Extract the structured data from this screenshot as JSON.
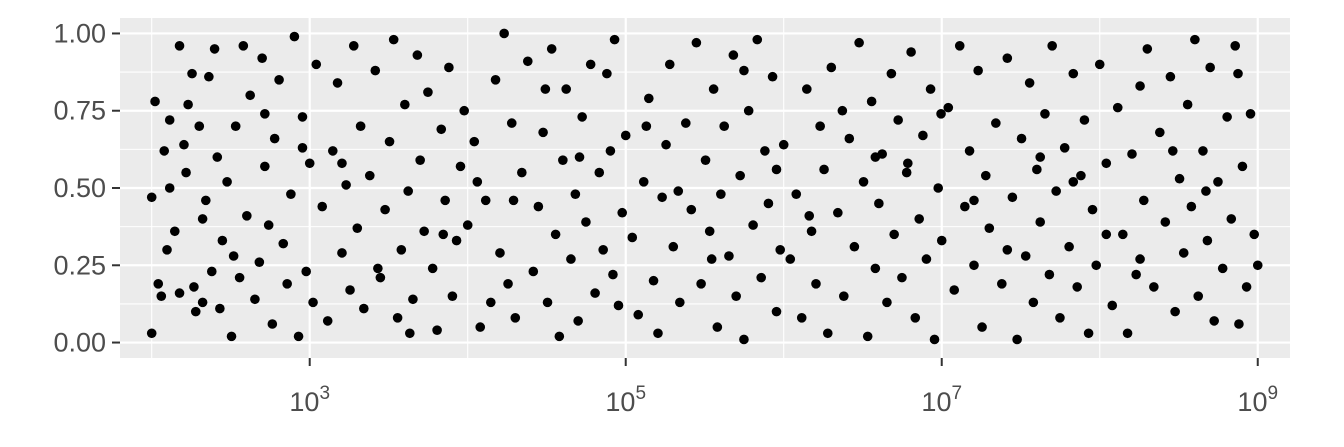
{
  "chart_data": {
    "type": "scatter",
    "title": "",
    "xlabel": "",
    "ylabel": "",
    "x_scale": "log10",
    "xlim": [
      63,
      1600000000
    ],
    "ylim": [
      -0.05,
      1.05
    ],
    "grid": true,
    "legend": "none",
    "colors": {
      "panel": "#ebebeb",
      "grid": "#ffffff",
      "point": "#000000",
      "text": "#4d4d4d",
      "tick": "#333333"
    },
    "x_ticks": [
      {
        "value": 1000,
        "base": "10",
        "exp": "3"
      },
      {
        "value": 100000,
        "base": "10",
        "exp": "5"
      },
      {
        "value": 10000000,
        "base": "10",
        "exp": "7"
      },
      {
        "value": 1000000000,
        "base": "10",
        "exp": "9"
      }
    ],
    "y_ticks": [
      {
        "value": 0.0,
        "label": "0.00"
      },
      {
        "value": 0.25,
        "label": "0.25"
      },
      {
        "value": 0.5,
        "label": "0.50"
      },
      {
        "value": 0.75,
        "label": "0.75"
      },
      {
        "value": 1.0,
        "label": "1.00"
      }
    ],
    "points": [
      [
        100,
        0.47
      ],
      [
        100,
        0.03
      ],
      [
        105,
        0.78
      ],
      [
        110,
        0.19
      ],
      [
        115,
        0.15
      ],
      [
        120,
        0.62
      ],
      [
        125,
        0.3
      ],
      [
        130,
        0.72
      ],
      [
        140,
        0.36
      ],
      [
        150,
        0.96
      ],
      [
        150,
        0.16
      ],
      [
        160,
        0.64
      ],
      [
        165,
        0.55
      ],
      [
        170,
        0.77
      ],
      [
        180,
        0.87
      ],
      [
        185,
        0.18
      ],
      [
        190,
        0.1
      ],
      [
        200,
        0.7
      ],
      [
        210,
        0.13
      ],
      [
        220,
        0.46
      ],
      [
        230,
        0.86
      ],
      [
        240,
        0.23
      ],
      [
        250,
        0.95
      ],
      [
        260,
        0.6
      ],
      [
        270,
        0.11
      ],
      [
        280,
        0.33
      ],
      [
        300,
        0.52
      ],
      [
        320,
        0.02
      ],
      [
        340,
        0.7
      ],
      [
        360,
        0.21
      ],
      [
        380,
        0.96
      ],
      [
        400,
        0.41
      ],
      [
        420,
        0.8
      ],
      [
        450,
        0.14
      ],
      [
        480,
        0.26
      ],
      [
        500,
        0.92
      ],
      [
        520,
        0.57
      ],
      [
        550,
        0.38
      ],
      [
        580,
        0.06
      ],
      [
        600,
        0.66
      ],
      [
        640,
        0.85
      ],
      [
        680,
        0.32
      ],
      [
        720,
        0.19
      ],
      [
        760,
        0.48
      ],
      [
        800,
        0.99
      ],
      [
        850,
        0.02
      ],
      [
        900,
        0.73
      ],
      [
        950,
        0.23
      ],
      [
        1000,
        0.58
      ],
      [
        1050,
        0.13
      ],
      [
        1100,
        0.9
      ],
      [
        1200,
        0.44
      ],
      [
        1300,
        0.07
      ],
      [
        1400,
        0.62
      ],
      [
        1500,
        0.84
      ],
      [
        1600,
        0.29
      ],
      [
        1700,
        0.51
      ],
      [
        1800,
        0.17
      ],
      [
        1900,
        0.96
      ],
      [
        2000,
        0.37
      ],
      [
        2100,
        0.7
      ],
      [
        2200,
        0.11
      ],
      [
        2400,
        0.54
      ],
      [
        2600,
        0.88
      ],
      [
        2800,
        0.21
      ],
      [
        3000,
        0.43
      ],
      [
        3200,
        0.65
      ],
      [
        3400,
        0.98
      ],
      [
        3600,
        0.08
      ],
      [
        3800,
        0.3
      ],
      [
        4000,
        0.77
      ],
      [
        4200,
        0.49
      ],
      [
        4500,
        0.14
      ],
      [
        4800,
        0.93
      ],
      [
        5000,
        0.59
      ],
      [
        5300,
        0.36
      ],
      [
        5600,
        0.81
      ],
      [
        6000,
        0.24
      ],
      [
        6400,
        0.04
      ],
      [
        6800,
        0.69
      ],
      [
        7200,
        0.46
      ],
      [
        7600,
        0.89
      ],
      [
        8000,
        0.15
      ],
      [
        8500,
        0.33
      ],
      [
        9000,
        0.57
      ],
      [
        9500,
        0.75
      ],
      [
        10000,
        0.38
      ],
      [
        11000,
        0.65
      ],
      [
        12000,
        0.05
      ],
      [
        13000,
        0.46
      ],
      [
        14000,
        0.13
      ],
      [
        15000,
        0.85
      ],
      [
        16000,
        0.29
      ],
      [
        17000,
        1.0
      ],
      [
        18000,
        0.19
      ],
      [
        19000,
        0.71
      ],
      [
        20000,
        0.08
      ],
      [
        22000,
        0.55
      ],
      [
        24000,
        0.91
      ],
      [
        26000,
        0.23
      ],
      [
        28000,
        0.44
      ],
      [
        30000,
        0.68
      ],
      [
        32000,
        0.13
      ],
      [
        34000,
        0.95
      ],
      [
        36000,
        0.35
      ],
      [
        38000,
        0.02
      ],
      [
        40000,
        0.59
      ],
      [
        42000,
        0.82
      ],
      [
        45000,
        0.27
      ],
      [
        48000,
        0.48
      ],
      [
        50000,
        0.07
      ],
      [
        53000,
        0.73
      ],
      [
        56000,
        0.39
      ],
      [
        60000,
        0.9
      ],
      [
        64000,
        0.16
      ],
      [
        68000,
        0.55
      ],
      [
        72000,
        0.3
      ],
      [
        76000,
        0.87
      ],
      [
        80000,
        0.62
      ],
      [
        85000,
        0.98
      ],
      [
        90000,
        0.12
      ],
      [
        95000,
        0.42
      ],
      [
        100000,
        0.67
      ],
      [
        110000,
        0.34
      ],
      [
        120000,
        0.09
      ],
      [
        130000,
        0.52
      ],
      [
        140000,
        0.79
      ],
      [
        150000,
        0.2
      ],
      [
        160000,
        0.03
      ],
      [
        170000,
        0.47
      ],
      [
        180000,
        0.64
      ],
      [
        190000,
        0.9
      ],
      [
        200000,
        0.31
      ],
      [
        220000,
        0.13
      ],
      [
        240000,
        0.71
      ],
      [
        260000,
        0.43
      ],
      [
        280000,
        0.97
      ],
      [
        300000,
        0.19
      ],
      [
        320000,
        0.59
      ],
      [
        340000,
        0.36
      ],
      [
        360000,
        0.82
      ],
      [
        380000,
        0.05
      ],
      [
        400000,
        0.48
      ],
      [
        420000,
        0.7
      ],
      [
        450000,
        0.28
      ],
      [
        480000,
        0.93
      ],
      [
        500000,
        0.15
      ],
      [
        530000,
        0.54
      ],
      [
        560000,
        0.01
      ],
      [
        600000,
        0.75
      ],
      [
        640000,
        0.38
      ],
      [
        680000,
        0.98
      ],
      [
        720000,
        0.21
      ],
      [
        760000,
        0.62
      ],
      [
        800000,
        0.45
      ],
      [
        850000,
        0.86
      ],
      [
        900000,
        0.1
      ],
      [
        950000,
        0.3
      ],
      [
        1000000,
        0.64
      ],
      [
        1100000,
        0.27
      ],
      [
        1200000,
        0.48
      ],
      [
        1300000,
        0.08
      ],
      [
        1400000,
        0.82
      ],
      [
        1500000,
        0.36
      ],
      [
        1600000,
        0.19
      ],
      [
        1700000,
        0.7
      ],
      [
        1800000,
        0.56
      ],
      [
        1900000,
        0.03
      ],
      [
        2000000,
        0.89
      ],
      [
        2200000,
        0.42
      ],
      [
        2400000,
        0.15
      ],
      [
        2600000,
        0.66
      ],
      [
        2800000,
        0.31
      ],
      [
        3000000,
        0.97
      ],
      [
        3200000,
        0.52
      ],
      [
        3400000,
        0.02
      ],
      [
        3600000,
        0.78
      ],
      [
        3800000,
        0.24
      ],
      [
        4000000,
        0.45
      ],
      [
        4200000,
        0.61
      ],
      [
        4500000,
        0.13
      ],
      [
        4800000,
        0.87
      ],
      [
        5000000,
        0.35
      ],
      [
        5300000,
        0.72
      ],
      [
        5600000,
        0.21
      ],
      [
        6000000,
        0.55
      ],
      [
        6400000,
        0.94
      ],
      [
        6800000,
        0.08
      ],
      [
        7200000,
        0.4
      ],
      [
        7600000,
        0.67
      ],
      [
        8000000,
        0.27
      ],
      [
        8500000,
        0.82
      ],
      [
        9000000,
        0.01
      ],
      [
        9500000,
        0.5
      ],
      [
        10000000,
        0.33
      ],
      [
        11000000,
        0.76
      ],
      [
        12000000,
        0.17
      ],
      [
        13000000,
        0.96
      ],
      [
        14000000,
        0.44
      ],
      [
        15000000,
        0.62
      ],
      [
        16000000,
        0.25
      ],
      [
        17000000,
        0.88
      ],
      [
        18000000,
        0.05
      ],
      [
        19000000,
        0.54
      ],
      [
        20000000,
        0.37
      ],
      [
        22000000,
        0.71
      ],
      [
        24000000,
        0.19
      ],
      [
        26000000,
        0.92
      ],
      [
        28000000,
        0.47
      ],
      [
        30000000,
        0.01
      ],
      [
        32000000,
        0.66
      ],
      [
        34000000,
        0.28
      ],
      [
        36000000,
        0.84
      ],
      [
        38000000,
        0.13
      ],
      [
        40000000,
        0.56
      ],
      [
        42000000,
        0.39
      ],
      [
        45000000,
        0.74
      ],
      [
        48000000,
        0.22
      ],
      [
        50000000,
        0.96
      ],
      [
        53000000,
        0.49
      ],
      [
        56000000,
        0.08
      ],
      [
        60000000,
        0.63
      ],
      [
        64000000,
        0.31
      ],
      [
        68000000,
        0.87
      ],
      [
        72000000,
        0.18
      ],
      [
        76000000,
        0.54
      ],
      [
        80000000,
        0.72
      ],
      [
        85000000,
        0.03
      ],
      [
        90000000,
        0.43
      ],
      [
        95000000,
        0.25
      ],
      [
        100000000,
        0.9
      ],
      [
        110000000,
        0.58
      ],
      [
        120000000,
        0.12
      ],
      [
        130000000,
        0.76
      ],
      [
        140000000,
        0.35
      ],
      [
        150000000,
        0.03
      ],
      [
        160000000,
        0.61
      ],
      [
        170000000,
        0.22
      ],
      [
        180000000,
        0.83
      ],
      [
        190000000,
        0.46
      ],
      [
        200000000,
        0.95
      ],
      [
        220000000,
        0.18
      ],
      [
        240000000,
        0.68
      ],
      [
        260000000,
        0.39
      ],
      [
        280000000,
        0.86
      ],
      [
        300000000,
        0.1
      ],
      [
        320000000,
        0.53
      ],
      [
        340000000,
        0.29
      ],
      [
        360000000,
        0.77
      ],
      [
        380000000,
        0.44
      ],
      [
        400000000,
        0.98
      ],
      [
        420000000,
        0.15
      ],
      [
        450000000,
        0.62
      ],
      [
        480000000,
        0.33
      ],
      [
        500000000,
        0.89
      ],
      [
        530000000,
        0.07
      ],
      [
        560000000,
        0.52
      ],
      [
        600000000,
        0.24
      ],
      [
        640000000,
        0.73
      ],
      [
        680000000,
        0.4
      ],
      [
        720000000,
        0.96
      ],
      [
        760000000,
        0.06
      ],
      [
        800000000,
        0.57
      ],
      [
        850000000,
        0.18
      ],
      [
        900000000,
        0.74
      ],
      [
        950000000,
        0.35
      ],
      [
        1000000000,
        0.25
      ],
      [
        130,
        0.5
      ],
      [
        210,
        0.4
      ],
      [
        330,
        0.28
      ],
      [
        520,
        0.74
      ],
      [
        900,
        0.63
      ],
      [
        1600,
        0.58
      ],
      [
        2700,
        0.24
      ],
      [
        4300,
        0.03
      ],
      [
        7000,
        0.35
      ],
      [
        11500,
        0.52
      ],
      [
        19500,
        0.46
      ],
      [
        31000,
        0.82
      ],
      [
        51000,
        0.6
      ],
      [
        83000,
        0.22
      ],
      [
        135000,
        0.7
      ],
      [
        215000,
        0.49
      ],
      [
        350000,
        0.27
      ],
      [
        560000,
        0.88
      ],
      [
        900000,
        0.56
      ],
      [
        1450000,
        0.41
      ],
      [
        2350000,
        0.75
      ],
      [
        3800000,
        0.6
      ],
      [
        6100000,
        0.58
      ],
      [
        9900000,
        0.74
      ],
      [
        16000000,
        0.46
      ],
      [
        26000000,
        0.3
      ],
      [
        42000000,
        0.6
      ],
      [
        68000000,
        0.52
      ],
      [
        110000000,
        0.35
      ],
      [
        180000000,
        0.27
      ],
      [
        290000000,
        0.62
      ],
      [
        470000000,
        0.49
      ],
      [
        750000000,
        0.87
      ]
    ]
  }
}
